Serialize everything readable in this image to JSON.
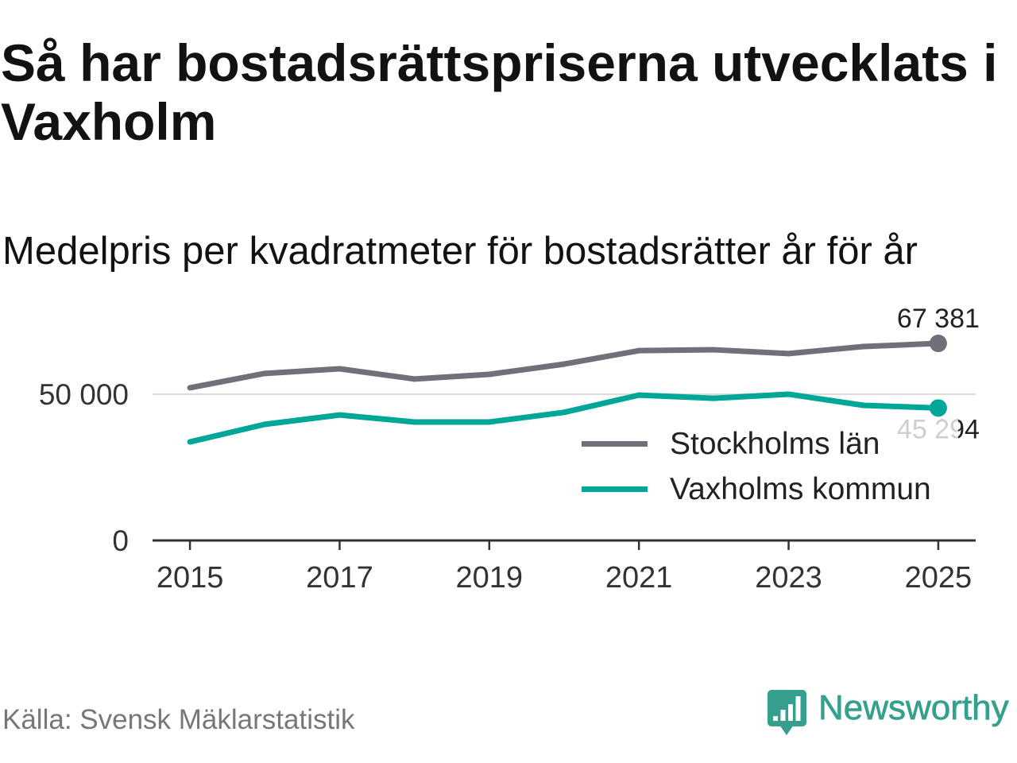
{
  "chart_data": {
    "type": "line",
    "title": "Så har bostadsrättspriserna utvecklats i Vaxholm",
    "subtitle": "Medelpris per kvadratmeter för bostadsrätter år för år",
    "x": [
      2015,
      2016,
      2017,
      2018,
      2019,
      2020,
      2021,
      2022,
      2023,
      2024,
      2025
    ],
    "xticks": [
      "2015",
      "2017",
      "2019",
      "2021",
      "2023",
      "2025"
    ],
    "xlim": [
      2014.5,
      2025.5
    ],
    "yticks": [
      {
        "value": 0,
        "label": "0"
      },
      {
        "value": 50000,
        "label": "50 000"
      }
    ],
    "ylim": [
      0,
      75000
    ],
    "grid": true,
    "legend": "inside-right",
    "series": [
      {
        "name": "Stockholms län",
        "color": "#707078",
        "values": [
          52200,
          57100,
          58700,
          55200,
          56800,
          60300,
          64900,
          65200,
          63900,
          66300,
          67381
        ],
        "end_label": "67 381"
      },
      {
        "name": "Vaxholms kommun",
        "color": "#00a698",
        "values": [
          33700,
          39700,
          42900,
          40500,
          40500,
          43800,
          49700,
          48600,
          50000,
          46200,
          45294
        ],
        "end_label": "45 294"
      }
    ]
  },
  "source": "Källa: Svensk Mäklarstatistik",
  "logo": {
    "text": "Newsworthy",
    "icon": "newsworthy-logo-icon",
    "color": "#35a08d"
  }
}
